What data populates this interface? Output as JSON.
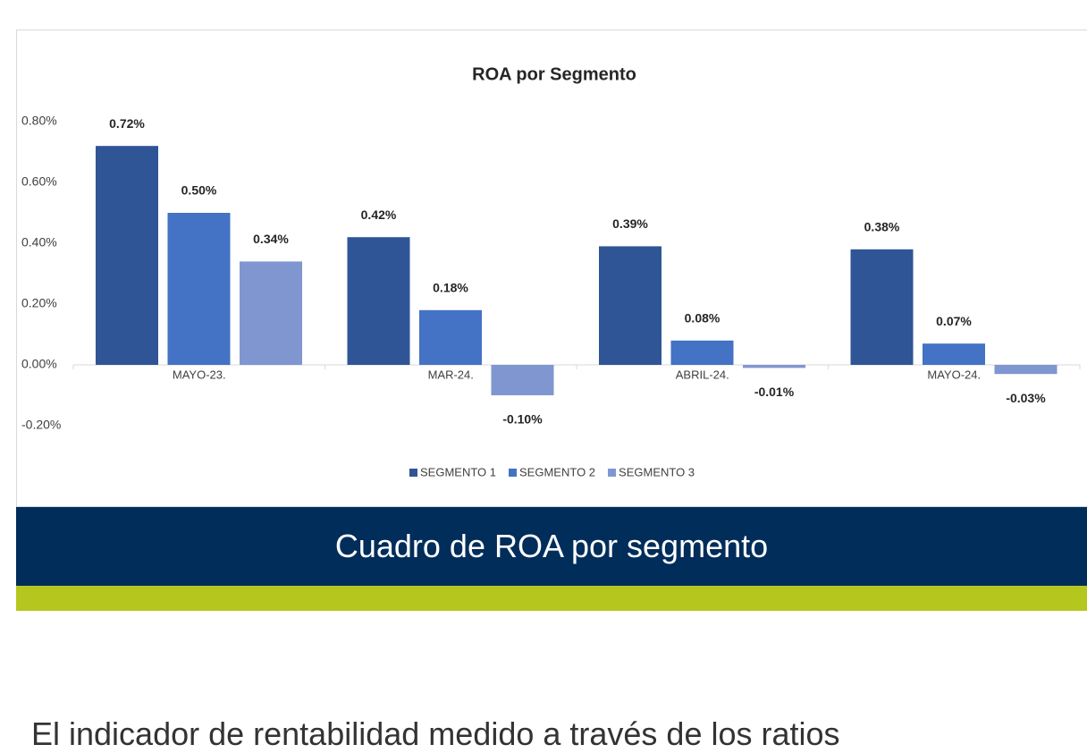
{
  "chart_data": {
    "type": "bar",
    "title": "ROA por Segmento",
    "categories": [
      "MAYO-23.",
      "MAR-24.",
      "ABRIL-24.",
      "MAYO-24."
    ],
    "series": [
      {
        "name": "SEGMENTO 1",
        "color": "#2f5597",
        "values": [
          0.72,
          0.42,
          0.39,
          0.38
        ],
        "value_labels": [
          "0.72%",
          "0.42%",
          "0.39%",
          "0.38%"
        ]
      },
      {
        "name": "SEGMENTO 2",
        "color": "#4472c4",
        "values": [
          0.5,
          0.18,
          0.08,
          0.07
        ],
        "value_labels": [
          "0.50%",
          "0.18%",
          "0.08%",
          "0.07%"
        ]
      },
      {
        "name": "SEGMENTO 3",
        "color": "#7f96d1",
        "values": [
          0.34,
          -0.1,
          -0.01,
          -0.03
        ],
        "value_labels": [
          "0.34%",
          "-0.10%",
          "-0.01%",
          "-0.03%"
        ]
      }
    ],
    "ylim": [
      -0.2,
      0.8
    ],
    "yticks": [
      {
        "value": -0.2,
        "label": "-0.20%"
      },
      {
        "value": 0,
        "label": "0.00%"
      },
      {
        "value": 0.2,
        "label": "0.20%"
      },
      {
        "value": 0.4,
        "label": "0.40%"
      },
      {
        "value": 0.6,
        "label": "0.60%"
      },
      {
        "value": 0.8,
        "label": "0.80%"
      }
    ],
    "legend": "bottom"
  },
  "caption": "Cuadro de ROA por segmento",
  "body_text": "El indicador de rentabilidad medido a través de los ratios"
}
